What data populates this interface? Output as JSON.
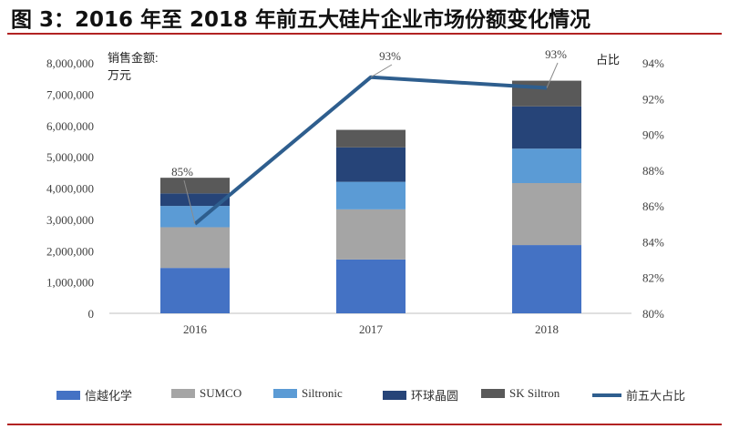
{
  "figure": {
    "title": "图 3：2016 年至 2018 年前五大硅片企业市场份额变化情况"
  },
  "chart_data": {
    "type": "bar",
    "stacked": true,
    "title": "图 3：2016 年至 2018 年前五大硅片企业市场份额变化情况",
    "ylabel": "销售金额:\n万元",
    "ylabel_lines": [
      "销售金额:",
      "万元"
    ],
    "y2label": "占比",
    "categories": [
      "2016",
      "2017",
      "2018"
    ],
    "ylim": [
      0,
      8000000
    ],
    "y_ticks": [
      "0",
      "1,000,000",
      "2,000,000",
      "3,000,000",
      "4,000,000",
      "5,000,000",
      "6,000,000",
      "7,000,000",
      "8,000,000"
    ],
    "y2lim": [
      80,
      94
    ],
    "y2_ticks": [
      "80%",
      "82%",
      "84%",
      "86%",
      "88%",
      "90%",
      "92%",
      "94%"
    ],
    "series": [
      {
        "name": "信越化学",
        "color": "#4472c4",
        "values": [
          1450000,
          1720000,
          2180000
        ]
      },
      {
        "name": "SUMCO",
        "color": "#a5a5a5",
        "values": [
          1300000,
          1600000,
          1980000
        ]
      },
      {
        "name": "Siltronic",
        "color": "#5b9bd5",
        "values": [
          680000,
          880000,
          1100000
        ]
      },
      {
        "name": "环球晶圆",
        "color": "#264478",
        "values": [
          400000,
          1100000,
          1350000
        ]
      },
      {
        "name": "SK Siltron",
        "color": "#595959",
        "values": [
          500000,
          560000,
          820000
        ]
      }
    ],
    "line_series": {
      "name": "前五大占比",
      "color": "#2e5e8e",
      "values": [
        85,
        93.2,
        92.6
      ],
      "labels": [
        "85%",
        "93%",
        "93%"
      ]
    },
    "legend_position": "bottom",
    "grid": false
  }
}
